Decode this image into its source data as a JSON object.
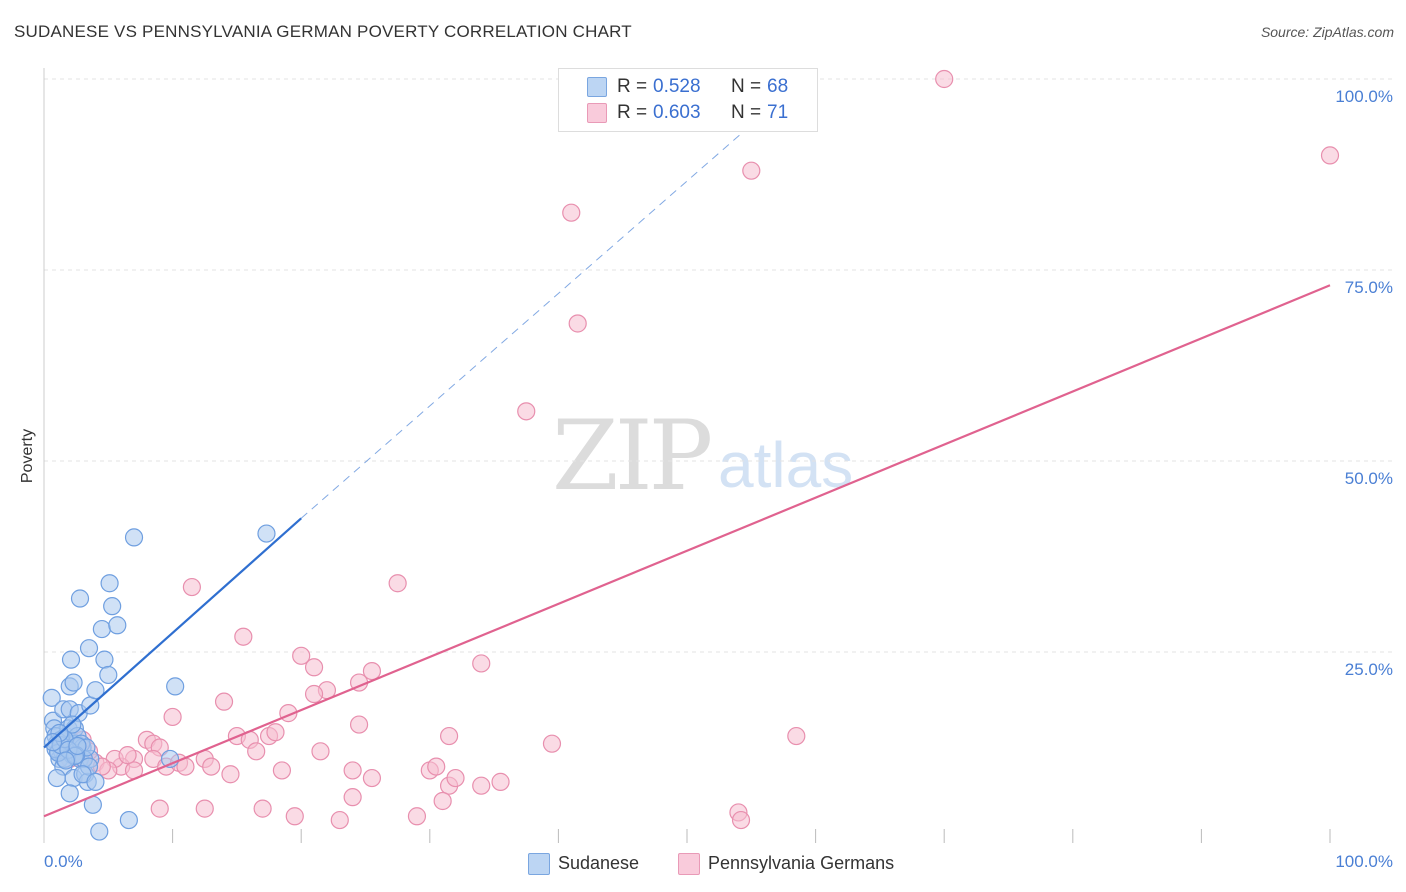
{
  "header": {
    "title": "SUDANESE VS PENNSYLVANIA GERMAN POVERTY CORRELATION CHART",
    "source": "Source: ZipAtlas.com"
  },
  "watermark": {
    "zip": "ZIP",
    "atlas": "atlas"
  },
  "colors": {
    "blue_fill": "#a9c8ef",
    "blue_stroke": "#6f9fe0",
    "blue_line": "#2f6fd0",
    "pink_fill": "#f6bdd0",
    "pink_stroke": "#e88fae",
    "pink_line": "#e0628f",
    "tick_text": "#4a7fd4",
    "grid": "#e3e3e3"
  },
  "legend_top": [
    {
      "r_label": "R =",
      "r_value": "0.528",
      "n_label": "N =",
      "n_value": "68",
      "series": "Sudanese"
    },
    {
      "r_label": "R =",
      "r_value": "0.603",
      "n_label": "N =",
      "n_value": "71",
      "series": "Pennsylvania Germans"
    }
  ],
  "legend_bottom": [
    {
      "label": "Sudanese"
    },
    {
      "label": "Pennsylvania Germans"
    }
  ],
  "chart_data": {
    "type": "scatter",
    "title": "SUDANESE VS PENNSYLVANIA GERMAN POVERTY CORRELATION CHART",
    "xlabel": "",
    "ylabel": "Poverty",
    "xlim": [
      0,
      100
    ],
    "ylim": [
      0,
      100
    ],
    "x_tick_labels": [
      "0.0%",
      "100.0%"
    ],
    "y_tick_values": [
      25,
      50,
      75,
      100
    ],
    "y_tick_labels": [
      "25.0%",
      "50.0%",
      "75.0%",
      "100.0%"
    ],
    "grid": true,
    "legend_position": "top-center",
    "series": [
      {
        "name": "Sudanese",
        "R": 0.528,
        "N": 68,
        "trend": {
          "x": [
            0,
            20
          ],
          "y": [
            12.5,
            42.5
          ],
          "dashed_to": [
            55,
            94
          ]
        },
        "points": [
          [
            0.6,
            19
          ],
          [
            0.7,
            16
          ],
          [
            0.8,
            15
          ],
          [
            0.9,
            14
          ],
          [
            1.0,
            13
          ],
          [
            1.1,
            12
          ],
          [
            1.2,
            11
          ],
          [
            1.3,
            13.5
          ],
          [
            1.4,
            12
          ],
          [
            1.5,
            10
          ],
          [
            1.0,
            8.5
          ],
          [
            1.5,
            17.5
          ],
          [
            1.7,
            14
          ],
          [
            1.8,
            12.5
          ],
          [
            1.9,
            15
          ],
          [
            2.0,
            17.5
          ],
          [
            2.1,
            13
          ],
          [
            2.2,
            11.5
          ],
          [
            2.3,
            8.5
          ],
          [
            2.0,
            6.5
          ],
          [
            1.6,
            11
          ],
          [
            2.4,
            15
          ],
          [
            2.5,
            13
          ],
          [
            2.6,
            14
          ],
          [
            2.8,
            11
          ],
          [
            3.0,
            12.5
          ],
          [
            3.2,
            9
          ],
          [
            3.4,
            8
          ],
          [
            3.6,
            11
          ],
          [
            3.8,
            5
          ],
          [
            2.0,
            20.5
          ],
          [
            2.1,
            24
          ],
          [
            2.3,
            21
          ],
          [
            2.7,
            17
          ],
          [
            2.9,
            13
          ],
          [
            3.1,
            11
          ],
          [
            3.3,
            12.5
          ],
          [
            3.5,
            10
          ],
          [
            2.5,
            11.5
          ],
          [
            2.2,
            15.5
          ],
          [
            2.8,
            32
          ],
          [
            3.5,
            25.5
          ],
          [
            3.6,
            18
          ],
          [
            4.0,
            20
          ],
          [
            4.5,
            28
          ],
          [
            4.7,
            24
          ],
          [
            5.0,
            22
          ],
          [
            5.3,
            31
          ],
          [
            5.1,
            34
          ],
          [
            5.7,
            28.5
          ],
          [
            7.0,
            40
          ],
          [
            6.6,
            3
          ],
          [
            9.8,
            11
          ],
          [
            10.2,
            20.5
          ],
          [
            17.3,
            40.5
          ],
          [
            4.3,
            1.5
          ],
          [
            3.0,
            9
          ],
          [
            4.0,
            8
          ],
          [
            0.9,
            12.3
          ],
          [
            1.1,
            11.8
          ],
          [
            1.3,
            12.8
          ],
          [
            1.6,
            13.6
          ],
          [
            1.9,
            12.2
          ],
          [
            2.4,
            11.4
          ],
          [
            1.2,
            14.4
          ],
          [
            1.7,
            10.8
          ],
          [
            2.6,
            12.7
          ],
          [
            0.7,
            13.2
          ]
        ]
      },
      {
        "name": "Pennsylvania Germans",
        "R": 0.603,
        "N": 71,
        "trend": {
          "x": [
            0,
            100
          ],
          "y": [
            3.5,
            73
          ]
        },
        "points": [
          [
            70,
            100
          ],
          [
            100,
            90
          ],
          [
            55,
            88
          ],
          [
            41,
            82.5
          ],
          [
            41.5,
            68
          ],
          [
            37.5,
            56.5
          ],
          [
            11.5,
            33.5
          ],
          [
            27.5,
            34
          ],
          [
            15.5,
            27
          ],
          [
            20,
            24.5
          ],
          [
            21,
            23
          ],
          [
            25.5,
            22.5
          ],
          [
            34,
            23.5
          ],
          [
            24.5,
            21
          ],
          [
            22,
            20
          ],
          [
            21,
            19.5
          ],
          [
            14,
            18.5
          ],
          [
            10,
            16.5
          ],
          [
            19,
            17
          ],
          [
            24.5,
            15.5
          ],
          [
            31.5,
            14
          ],
          [
            39.5,
            13
          ],
          [
            58.5,
            14
          ],
          [
            15,
            14
          ],
          [
            8,
            13.5
          ],
          [
            16,
            13.5
          ],
          [
            17.5,
            14
          ],
          [
            18,
            14.5
          ],
          [
            8.5,
            13
          ],
          [
            9,
            12.5
          ],
          [
            7,
            11
          ],
          [
            12.5,
            11
          ],
          [
            21.5,
            12
          ],
          [
            16.5,
            12
          ],
          [
            8.5,
            11
          ],
          [
            9.5,
            10
          ],
          [
            10.5,
            10.5
          ],
          [
            13,
            10
          ],
          [
            6,
            10
          ],
          [
            7,
            9.5
          ],
          [
            11,
            10
          ],
          [
            14.5,
            9
          ],
          [
            18.5,
            9.5
          ],
          [
            24,
            9.5
          ],
          [
            30,
            9.5
          ],
          [
            30.5,
            10
          ],
          [
            25.5,
            8.5
          ],
          [
            31.5,
            7.5
          ],
          [
            32,
            8.5
          ],
          [
            34,
            7.5
          ],
          [
            35.5,
            8
          ],
          [
            24,
            6
          ],
          [
            31,
            5.5
          ],
          [
            9,
            4.5
          ],
          [
            12.5,
            4.5
          ],
          [
            17,
            4.5
          ],
          [
            19.5,
            3.5
          ],
          [
            23,
            3
          ],
          [
            29,
            3.5
          ],
          [
            54,
            4
          ],
          [
            54.2,
            3
          ],
          [
            3,
            11
          ],
          [
            4,
            10.5
          ],
          [
            5.5,
            11
          ],
          [
            6.5,
            11.5
          ],
          [
            5,
            9.5
          ],
          [
            4.5,
            10
          ],
          [
            3.5,
            12
          ],
          [
            2.5,
            12.5
          ],
          [
            3,
            13.5
          ],
          [
            2,
            11
          ]
        ]
      }
    ]
  }
}
